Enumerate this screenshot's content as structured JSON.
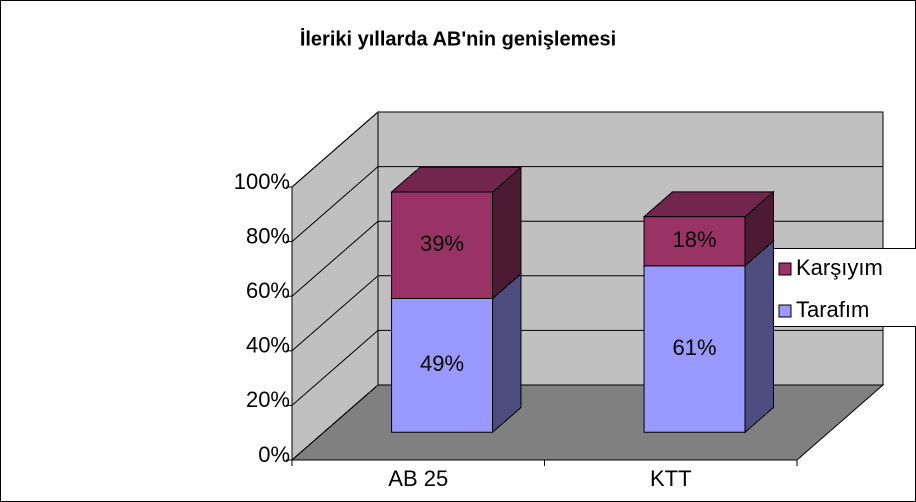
{
  "chart_data": {
    "type": "bar3d_stacked",
    "title": "İleriki yıllarda AB'nin genişlemesi",
    "categories": [
      "AB 25",
      "KTT"
    ],
    "series": [
      {
        "name": "Tarafım",
        "color": "#9999ff",
        "values": [
          49,
          61
        ],
        "value_labels": [
          "49%",
          "61%"
        ]
      },
      {
        "name": "Karşıyım",
        "color": "#993366",
        "values": [
          39,
          18
        ],
        "value_labels": [
          "39%",
          "18%"
        ]
      }
    ],
    "ylim": [
      0,
      100
    ],
    "yticks": [
      {
        "value": 0,
        "label": "0%"
      },
      {
        "value": 20,
        "label": "20%"
      },
      {
        "value": 40,
        "label": "40%"
      },
      {
        "value": 60,
        "label": "60%"
      },
      {
        "value": 80,
        "label": "80%"
      },
      {
        "value": 100,
        "label": "100%"
      }
    ],
    "grid": true,
    "legend": "right"
  }
}
